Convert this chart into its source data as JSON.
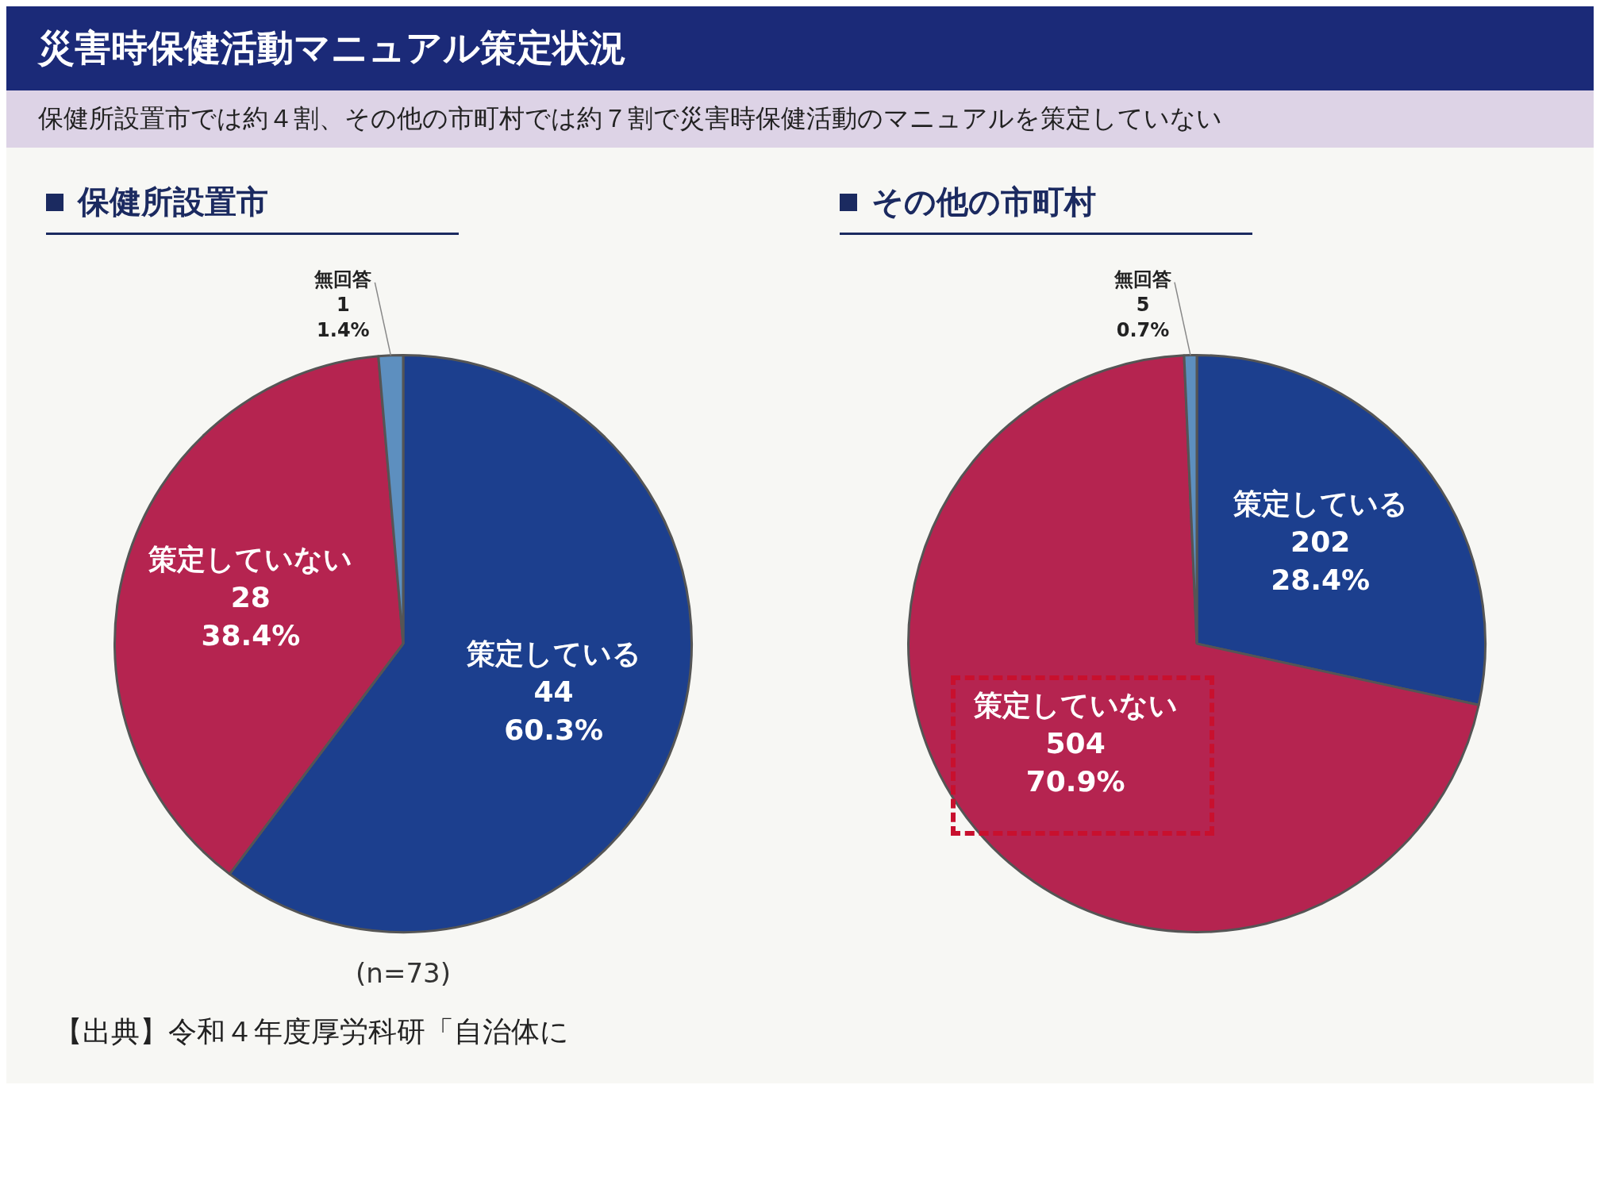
{
  "chart_data": [
    {
      "type": "pie",
      "title": "保健所設置市",
      "categories": [
        "策定している",
        "策定していない",
        "無回答"
      ],
      "values": [
        44,
        28,
        1
      ],
      "colors": [
        "#1c3f8e",
        "#b52450",
        "#5d8fbf"
      ],
      "value_labels": [
        "44\n60.3%",
        "28\n38.4%",
        "1\n1.4%"
      ],
      "legend": false,
      "annotations": [
        "災害時保健活動マニュアル策定状況",
        "保健所設置市では約４割、その他の市町村では約７割で災害時保健活動のマニュアルを策定していない",
        "(n=73)",
        "【出典】令和４年度厚労科研「自治体に"
      ]
    },
    {
      "type": "pie",
      "title": "その他の市町村",
      "categories": [
        "策定している",
        "策定していない",
        "無回答"
      ],
      "values": [
        202,
        504,
        5
      ],
      "colors": [
        "#1c3f8e",
        "#b52450",
        "#5d8fbf"
      ],
      "value_labels": [
        "202\n28.4%",
        "504\n70.9%",
        "5\n0.7%"
      ],
      "legend": false
    }
  ]
}
